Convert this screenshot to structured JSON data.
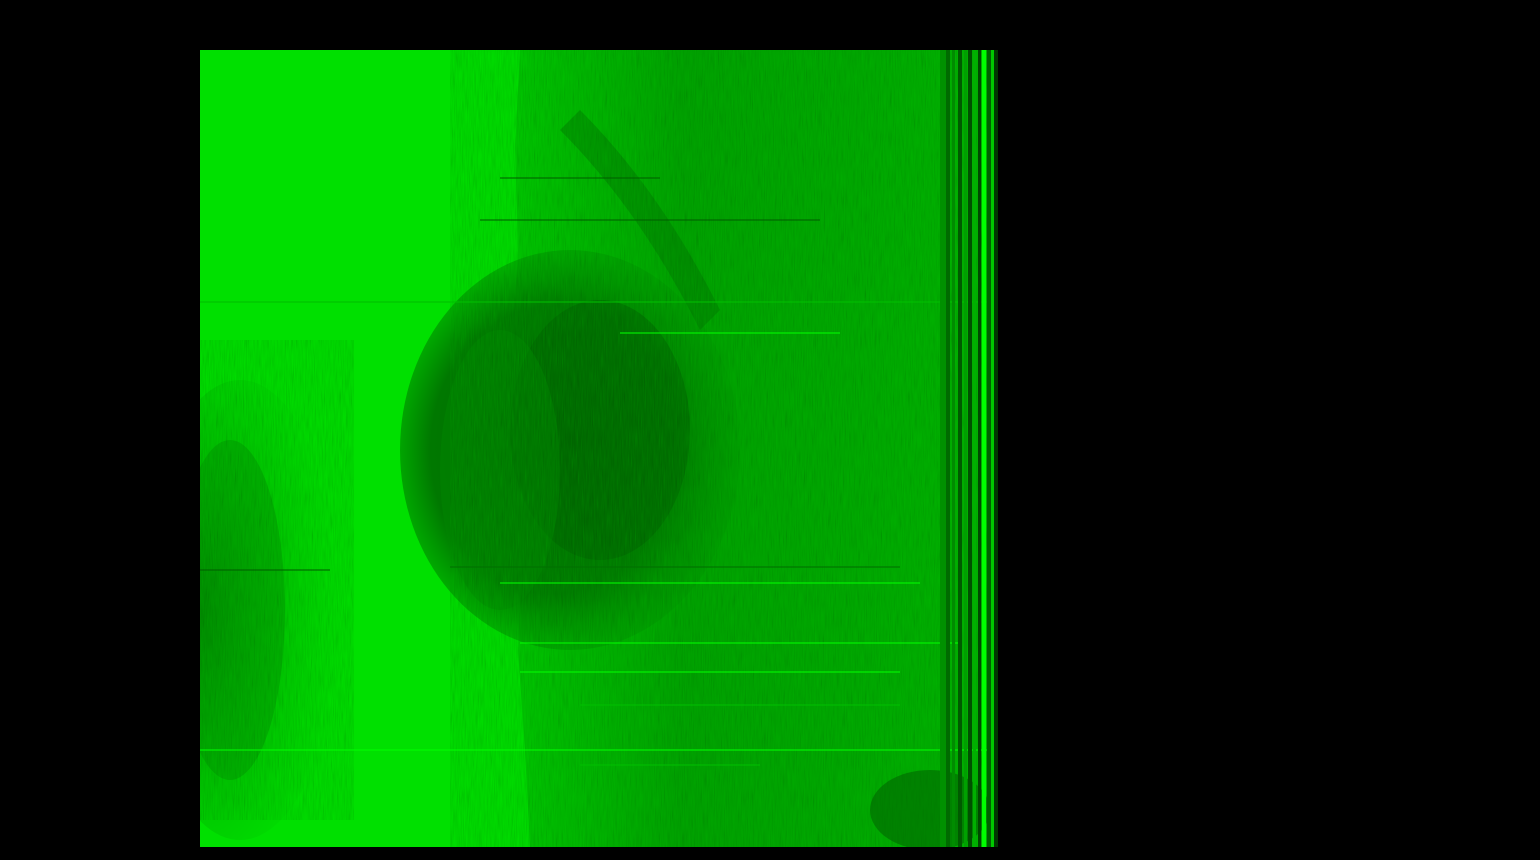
{
  "image": {
    "kind": "side-scan sonar echogram",
    "background_color": "#000000",
    "palette": {
      "bright": "#00e000",
      "mid": "#00a800",
      "dark": "#005a00",
      "stripe": "#00ff00"
    },
    "features": [
      "water-column-band",
      "rock-outcrop-center",
      "seabed-texture-left",
      "right-edge-stripes",
      "horizontal-interference-lines"
    ]
  }
}
